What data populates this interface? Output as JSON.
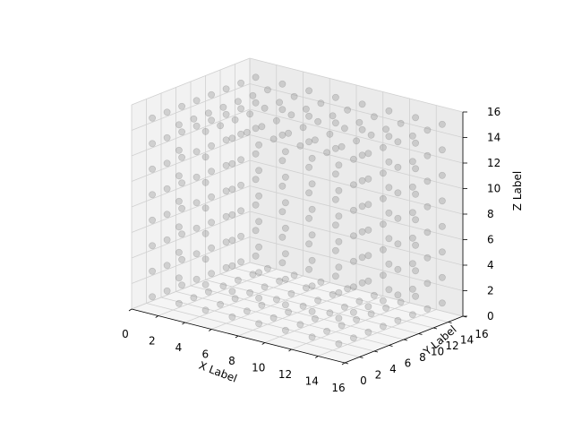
{
  "chart_data": {
    "type": "scatter",
    "subtype": "3d",
    "title": "",
    "xlabel": "X Label",
    "ylabel": "Y Label",
    "zlabel": "Z Label",
    "xlim": [
      0,
      16
    ],
    "ylim": [
      0,
      16
    ],
    "zlim": [
      0,
      16
    ],
    "xticks": [
      "0",
      "2",
      "4",
      "6",
      "8",
      "10",
      "12",
      "14",
      "16"
    ],
    "yticks": [
      "0",
      "2",
      "4",
      "6",
      "8",
      "10",
      "12",
      "14",
      "16"
    ],
    "zticks": [
      "0",
      "2",
      "4",
      "6",
      "8",
      "10",
      "12",
      "14",
      "16"
    ],
    "grid": true,
    "marker_color": "#808080",
    "marker_alpha": 0.3,
    "points_description": "points on the six faces of a cube spanning 1 to 15 on each axis, spaced by 2",
    "face_positions": [
      1,
      3,
      5,
      7,
      9,
      11,
      13,
      15
    ],
    "cube_min": 1,
    "cube_max": 15
  }
}
